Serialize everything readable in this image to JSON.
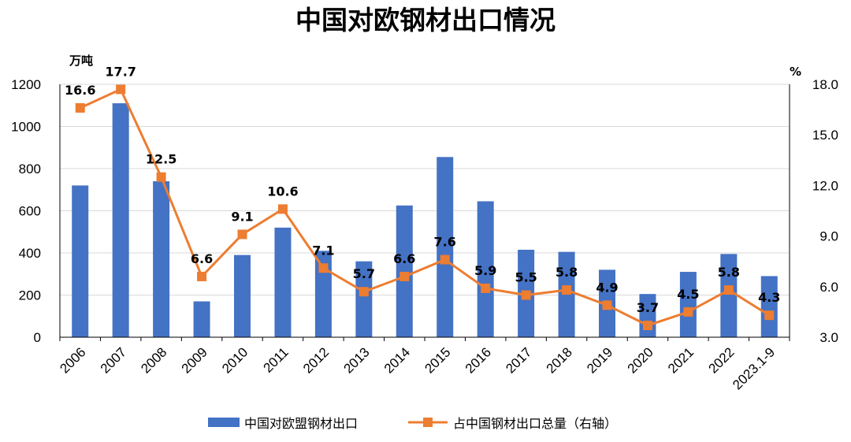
{
  "chart_data": {
    "type": "bar+line",
    "title": "中国对欧钢材出口情况",
    "categories": [
      "2006",
      "2007",
      "2008",
      "2009",
      "2010",
      "2011",
      "2012",
      "2013",
      "2014",
      "2015",
      "2016",
      "2017",
      "2018",
      "2019",
      "2020",
      "2021",
      "2022",
      "2023.1-9"
    ],
    "left_axis": {
      "unit": "万吨",
      "ylim": [
        0,
        1200
      ],
      "ticks": [
        "0",
        "200",
        "400",
        "600",
        "800",
        "1000",
        "1200"
      ]
    },
    "right_axis": {
      "unit": "%",
      "ylim": [
        3.0,
        18.0
      ],
      "ticks": [
        "3.0",
        "6.0",
        "9.0",
        "12.0",
        "15.0",
        "18.0"
      ]
    },
    "series": [
      {
        "name": "中国对欧盟钢材出口",
        "type": "bar",
        "axis": "left",
        "color": "#4472C4",
        "values": [
          720,
          1110,
          740,
          170,
          390,
          520,
          410,
          360,
          625,
          855,
          645,
          415,
          405,
          320,
          205,
          310,
          395,
          290
        ]
      },
      {
        "name": "占中国钢材出口总量（右轴）",
        "type": "line",
        "axis": "right",
        "color": "#ED7D31",
        "values": [
          16.6,
          17.7,
          12.5,
          6.6,
          9.1,
          10.6,
          7.1,
          5.7,
          6.6,
          7.6,
          5.9,
          5.5,
          5.8,
          4.9,
          3.7,
          4.5,
          5.8,
          4.3
        ],
        "labels": [
          "16.6",
          "17.7",
          "12.5",
          "6.6",
          "9.1",
          "10.6",
          "7.1",
          "5.7",
          "6.6",
          "7.6",
          "5.9",
          "5.5",
          "5.8",
          "4.9",
          "3.7",
          "4.5",
          "5.8",
          "4.3"
        ]
      }
    ],
    "grid": true,
    "legend": "bottom"
  }
}
